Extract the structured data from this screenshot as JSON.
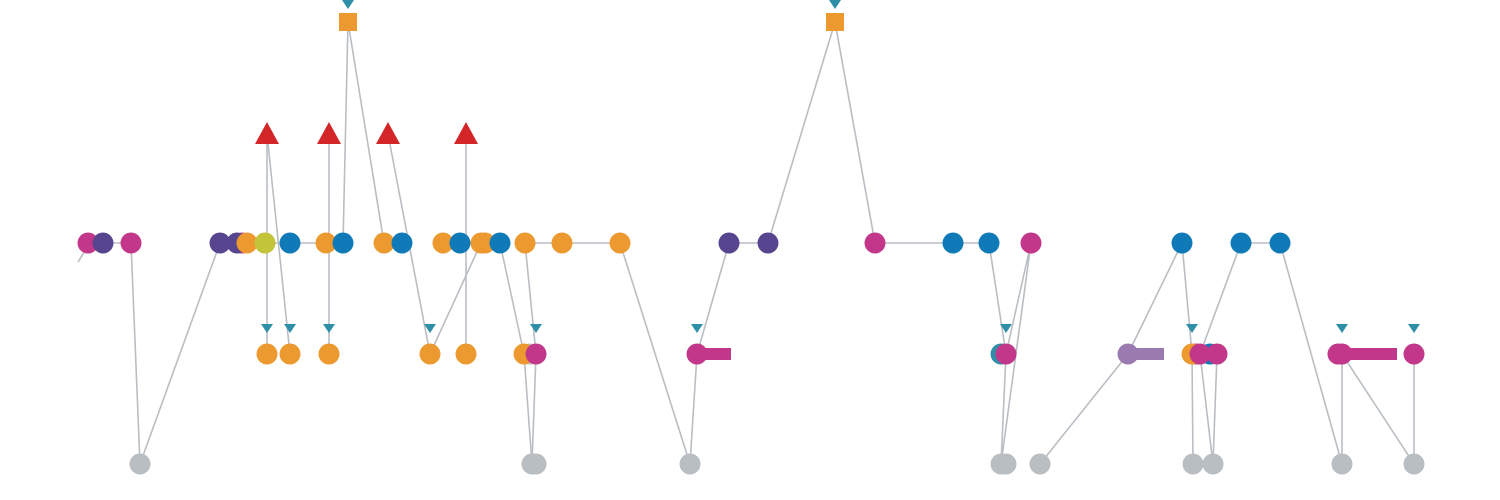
{
  "diagram": {
    "type": "node-link-timeline",
    "colors": {
      "magenta": "#c2378a",
      "purple": "#57468f",
      "orange": "#ec9a30",
      "blue": "#0f7ab7",
      "yellow": "#c2c43a",
      "gray": "#b9bec3",
      "red": "#d42529",
      "teal": "#2f8ea8",
      "lavender": "#9b7ab0",
      "edge": "#b9bec3"
    },
    "nodes": [
      {
        "id": "sq1",
        "shape": "square",
        "color": "orange",
        "marker": true
      },
      {
        "id": "sq2",
        "shape": "square",
        "color": "orange",
        "marker": true
      },
      {
        "id": "t1",
        "shape": "triangle",
        "color": "red"
      },
      {
        "id": "t2",
        "shape": "triangle",
        "color": "red"
      },
      {
        "id": "t3",
        "shape": "triangle",
        "color": "red"
      },
      {
        "id": "t4",
        "shape": "triangle",
        "color": "red"
      },
      {
        "id": "m1",
        "shape": "circle",
        "color": "magenta"
      },
      {
        "id": "m2",
        "shape": "circle",
        "color": "purple"
      },
      {
        "id": "m3",
        "shape": "circle",
        "color": "magenta"
      },
      {
        "id": "m4",
        "shape": "circle",
        "color": "purple"
      },
      {
        "id": "m5",
        "shape": "circle",
        "color": "purple"
      },
      {
        "id": "m6",
        "shape": "circle",
        "color": "orange"
      },
      {
        "id": "m7",
        "shape": "circle",
        "color": "yellow"
      },
      {
        "id": "m8",
        "shape": "circle",
        "color": "blue"
      },
      {
        "id": "m9",
        "shape": "circle",
        "color": "orange"
      },
      {
        "id": "m10",
        "shape": "circle",
        "color": "blue"
      },
      {
        "id": "m11",
        "shape": "circle",
        "color": "orange"
      },
      {
        "id": "m12",
        "shape": "circle",
        "color": "blue"
      },
      {
        "id": "m13",
        "shape": "circle",
        "color": "orange"
      },
      {
        "id": "m14",
        "shape": "circle",
        "color": "blue"
      },
      {
        "id": "m15",
        "shape": "circle",
        "color": "orange"
      },
      {
        "id": "m16",
        "shape": "circle",
        "color": "orange"
      },
      {
        "id": "m17",
        "shape": "circle",
        "color": "blue"
      },
      {
        "id": "m18",
        "shape": "circle",
        "color": "orange"
      },
      {
        "id": "m19",
        "shape": "circle",
        "color": "orange"
      },
      {
        "id": "m20",
        "shape": "circle",
        "color": "orange"
      },
      {
        "id": "m21",
        "shape": "circle",
        "color": "purple"
      },
      {
        "id": "m22",
        "shape": "circle",
        "color": "purple"
      },
      {
        "id": "m23",
        "shape": "circle",
        "color": "magenta"
      },
      {
        "id": "m24",
        "shape": "circle",
        "color": "blue"
      },
      {
        "id": "m25",
        "shape": "circle",
        "color": "blue"
      },
      {
        "id": "m26",
        "shape": "circle",
        "color": "magenta"
      },
      {
        "id": "m27",
        "shape": "circle",
        "color": "blue"
      },
      {
        "id": "m28",
        "shape": "circle",
        "color": "blue"
      },
      {
        "id": "m29",
        "shape": "circle",
        "color": "blue"
      },
      {
        "id": "l1",
        "shape": "circle",
        "color": "orange",
        "marker": true
      },
      {
        "id": "l2",
        "shape": "circle",
        "color": "orange",
        "marker": true
      },
      {
        "id": "l3",
        "shape": "circle",
        "color": "orange",
        "marker": true
      },
      {
        "id": "l4",
        "shape": "circle",
        "color": "orange",
        "marker": true
      },
      {
        "id": "l5",
        "shape": "circle",
        "color": "orange"
      },
      {
        "id": "l6",
        "shape": "circle",
        "color": "orange"
      },
      {
        "id": "l7",
        "shape": "circle",
        "color": "magenta",
        "marker": true
      },
      {
        "id": "l8",
        "shape": "circle",
        "color": "magenta",
        "marker": true,
        "bar": true
      },
      {
        "id": "l9",
        "shape": "circle",
        "color": "magenta",
        "marker": true
      },
      {
        "id": "l10",
        "shape": "circle",
        "color": "lavender",
        "bar": true
      },
      {
        "id": "l11",
        "shape": "circle",
        "color": "orange",
        "marker": true
      },
      {
        "id": "l12",
        "shape": "circle",
        "color": "magenta"
      },
      {
        "id": "l13",
        "shape": "circle",
        "color": "magenta"
      },
      {
        "id": "l14",
        "shape": "circle",
        "color": "magenta",
        "marker": true,
        "bar": true
      },
      {
        "id": "l15",
        "shape": "circle",
        "color": "magenta",
        "marker": true
      },
      {
        "id": "g1",
        "shape": "circle",
        "color": "gray"
      },
      {
        "id": "g2",
        "shape": "circle",
        "color": "gray"
      },
      {
        "id": "g3",
        "shape": "circle",
        "color": "gray"
      },
      {
        "id": "g4",
        "shape": "circle",
        "color": "gray"
      },
      {
        "id": "g5",
        "shape": "circle",
        "color": "gray"
      },
      {
        "id": "g6",
        "shape": "circle",
        "color": "gray"
      },
      {
        "id": "g7",
        "shape": "circle",
        "color": "gray"
      },
      {
        "id": "g8",
        "shape": "circle",
        "color": "gray"
      },
      {
        "id": "g9",
        "shape": "circle",
        "color": "gray"
      }
    ],
    "edges": [
      [
        "m1",
        "m2"
      ],
      [
        "m2",
        "m3"
      ],
      [
        "m3",
        "g1"
      ],
      [
        "g1",
        "m4"
      ],
      [
        "m4",
        "m5"
      ],
      [
        "m7",
        "m8"
      ],
      [
        "m8",
        "m9"
      ],
      [
        "m9",
        "m10"
      ],
      [
        "m11",
        "m12"
      ],
      [
        "m13",
        "m14"
      ],
      [
        "m15",
        "m16"
      ],
      [
        "m16",
        "m17"
      ],
      [
        "m18",
        "m19"
      ],
      [
        "m19",
        "m20"
      ],
      [
        "m21",
        "m22"
      ],
      [
        "m22",
        "sq2"
      ],
      [
        "sq2",
        "m23"
      ],
      [
        "m23",
        "m24"
      ],
      [
        "m24",
        "m25"
      ],
      [
        "m28",
        "m29"
      ],
      [
        "t1",
        "l1"
      ],
      [
        "t1",
        "l2"
      ],
      [
        "t2",
        "l3"
      ],
      [
        "t3",
        "l4"
      ],
      [
        "t4",
        "l5"
      ],
      [
        "sq1",
        "m10"
      ],
      [
        "sq1",
        "m11"
      ],
      [
        "l4",
        "m15"
      ],
      [
        "m17",
        "l6"
      ],
      [
        "l6",
        "g2"
      ],
      [
        "m18",
        "l7"
      ],
      [
        "l7",
        "g2"
      ],
      [
        "m20",
        "g3"
      ],
      [
        "g3",
        "l8"
      ],
      [
        "l8",
        "m21"
      ],
      [
        "m25",
        "l9"
      ],
      [
        "l9",
        "m26"
      ],
      [
        "l9",
        "g4"
      ],
      [
        "m26",
        "g4"
      ],
      [
        "g5",
        "l10"
      ],
      [
        "l10",
        "m27"
      ],
      [
        "m27",
        "l11"
      ],
      [
        "l11",
        "g6"
      ],
      [
        "m28",
        "l12"
      ],
      [
        "l12",
        "g7"
      ],
      [
        "l13",
        "g7"
      ],
      [
        "m29",
        "g8"
      ],
      [
        "g8",
        "l14"
      ],
      [
        "l14",
        "g9"
      ],
      [
        "g9",
        "l15"
      ]
    ]
  }
}
